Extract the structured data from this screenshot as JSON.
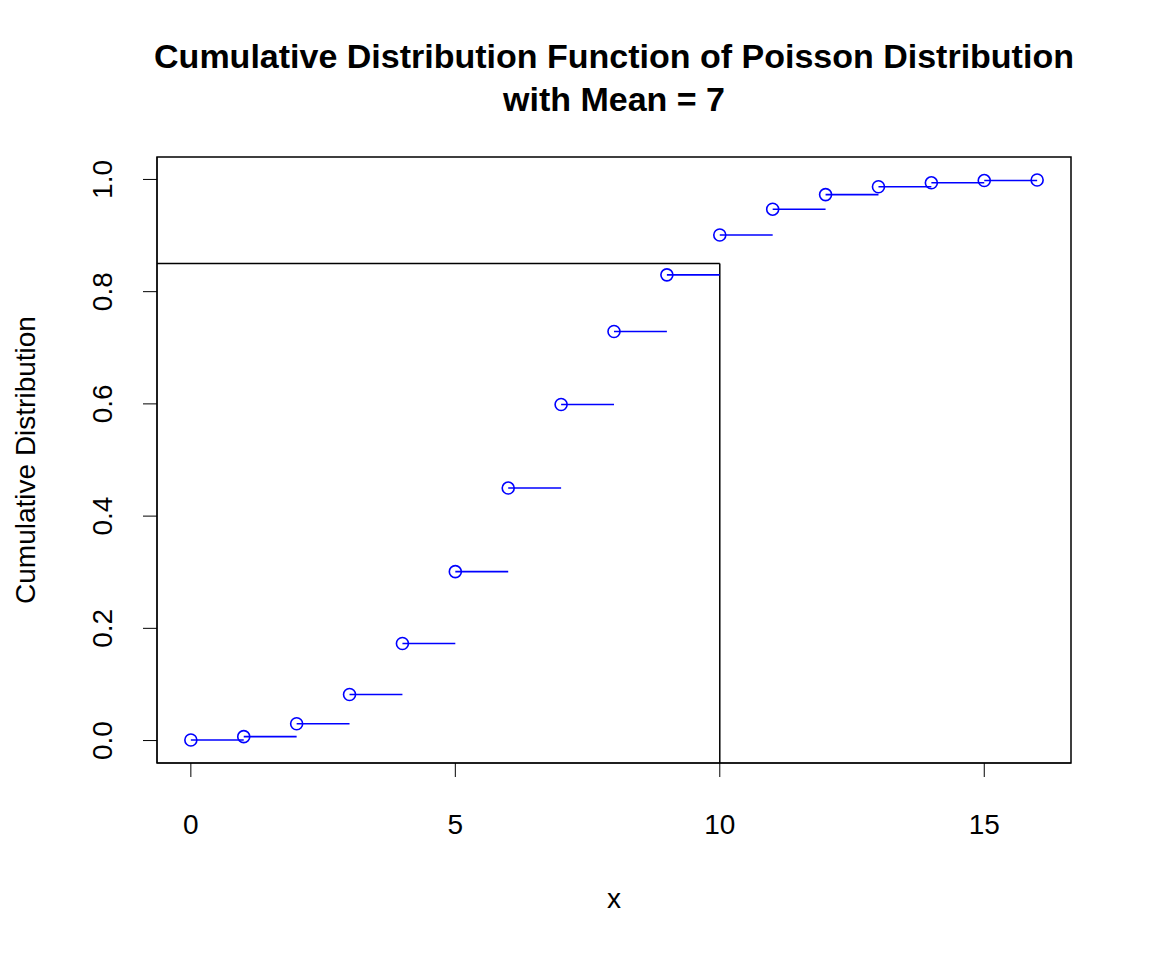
{
  "chart_data": {
    "type": "scatter",
    "title": "Cumulative Distribution Function of Poisson Distribution\nwith Mean = 7",
    "x_label": "x",
    "y_label": "Cumulative Distribution",
    "x": [
      0,
      1,
      2,
      3,
      4,
      5,
      6,
      7,
      8,
      9,
      10,
      11,
      12,
      13,
      14,
      15,
      16
    ],
    "values": [
      0.001,
      0.007,
      0.03,
      0.082,
      0.173,
      0.301,
      0.45,
      0.599,
      0.729,
      0.83,
      0.901,
      0.947,
      0.973,
      0.987,
      0.994,
      0.998,
      0.999
    ],
    "color": "#0000ff",
    "marker": "circle",
    "line_style": "step",
    "xlim": [
      -0.64,
      16.64
    ],
    "ylim": [
      -0.04,
      1.04
    ],
    "xticks": [
      0,
      5,
      10,
      15
    ],
    "yticks": [
      {
        "value": 0,
        "label": "0.0"
      },
      0.2,
      0.4,
      0.6,
      0.8,
      {
        "value": 1,
        "label": "1.0"
      }
    ],
    "reference_lines": {
      "x": 10,
      "y": 0.85
    }
  }
}
